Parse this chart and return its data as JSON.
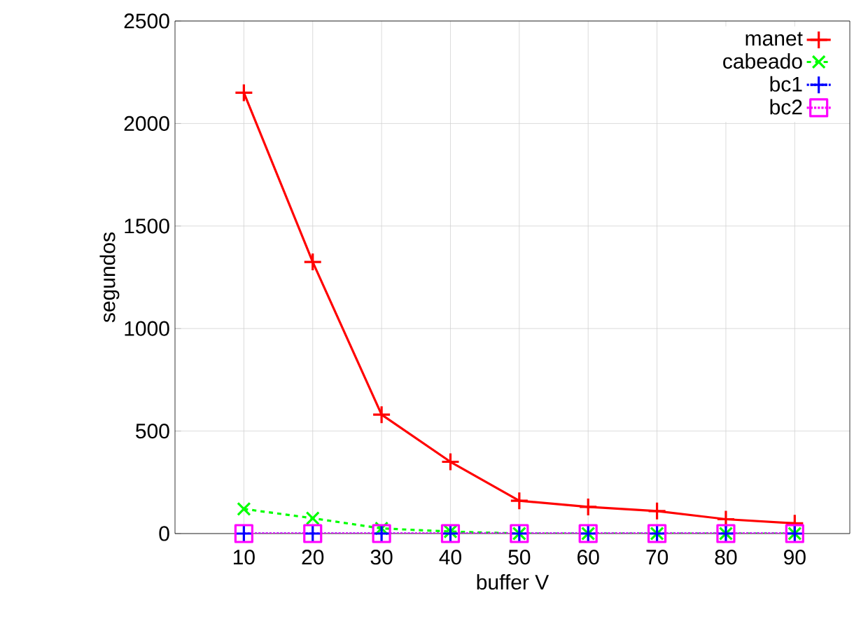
{
  "chart_data": {
    "type": "line",
    "xlabel": "buffer V",
    "ylabel": "segundos",
    "x": [
      10,
      20,
      30,
      40,
      50,
      60,
      70,
      80,
      90
    ],
    "xlim": [
      0,
      98
    ],
    "xticks": [
      10,
      20,
      30,
      40,
      50,
      60,
      70,
      80,
      90
    ],
    "ylim": [
      0,
      2500
    ],
    "yticks": [
      0,
      500,
      1000,
      1500,
      2000,
      2500
    ],
    "grid": true,
    "legend": "top right",
    "series": [
      {
        "name": "manet",
        "color": "#ff0000",
        "marker": "cross",
        "line_style": "solid",
        "values": [
          2150,
          1325,
          580,
          350,
          160,
          130,
          110,
          70,
          50
        ]
      },
      {
        "name": "cabeado",
        "color": "#00ff00",
        "marker": "x",
        "line_style": "dashed",
        "values": [
          120,
          75,
          25,
          10,
          0,
          0,
          0,
          0,
          0
        ]
      },
      {
        "name": "bc1",
        "color": "#0000ff",
        "marker": "cross",
        "line_style": "dotted",
        "values": [
          0,
          0,
          0,
          0,
          0,
          0,
          0,
          0,
          0
        ]
      },
      {
        "name": "bc2",
        "color": "#ff00ff",
        "marker": "square",
        "line_style": "dotted",
        "values": [
          0,
          0,
          0,
          0,
          0,
          0,
          0,
          0,
          0
        ]
      }
    ]
  }
}
